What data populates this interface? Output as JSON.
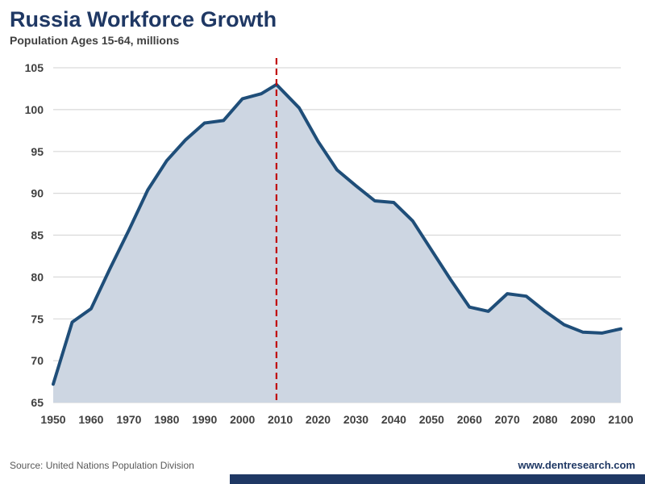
{
  "header": {
    "title": "Russia Workforce Growth",
    "subtitle": "Population Ages 15-64, millions"
  },
  "chart_data": {
    "type": "area",
    "title": "Russia Workforce Growth",
    "subtitle": "Population Ages 15-64, millions",
    "series_name": "Russia population ages 15-64 (millions)",
    "x": [
      1950,
      1955,
      1960,
      1965,
      1970,
      1975,
      1980,
      1985,
      1990,
      1995,
      2000,
      2005,
      2009,
      2015,
      2020,
      2025,
      2030,
      2035,
      2040,
      2045,
      2050,
      2055,
      2060,
      2065,
      2070,
      2075,
      2080,
      2085,
      2090,
      2095,
      2100
    ],
    "values": [
      67.2,
      74.6,
      76.2,
      81.0,
      85.6,
      90.4,
      93.9,
      96.4,
      98.4,
      98.7,
      101.3,
      101.9,
      103.0,
      100.2,
      96.2,
      92.8,
      90.9,
      89.1,
      88.9,
      86.7,
      83.2,
      79.7,
      76.4,
      75.9,
      78.0,
      77.7,
      75.9,
      74.3,
      73.4,
      73.3,
      73.8
    ],
    "ylim": [
      65,
      105
    ],
    "yticks": [
      65,
      70,
      75,
      80,
      85,
      90,
      95,
      100,
      105
    ],
    "xticks": [
      1950,
      1960,
      1970,
      1980,
      1990,
      2000,
      2010,
      2020,
      2030,
      2040,
      2050,
      2060,
      2070,
      2080,
      2090,
      2100
    ],
    "vline_year": 2009,
    "grid": "horizontal",
    "legend": "none",
    "colors": {
      "line": "#1f4e79",
      "fill": "#cdd6e2",
      "vline": "#c00000",
      "grid": "#d9d9d9",
      "tick_text": "#404040",
      "accent": "#1f3864"
    }
  },
  "footer": {
    "source": "Source: United Nations Population Division",
    "website": "www.dentresearch.com"
  }
}
